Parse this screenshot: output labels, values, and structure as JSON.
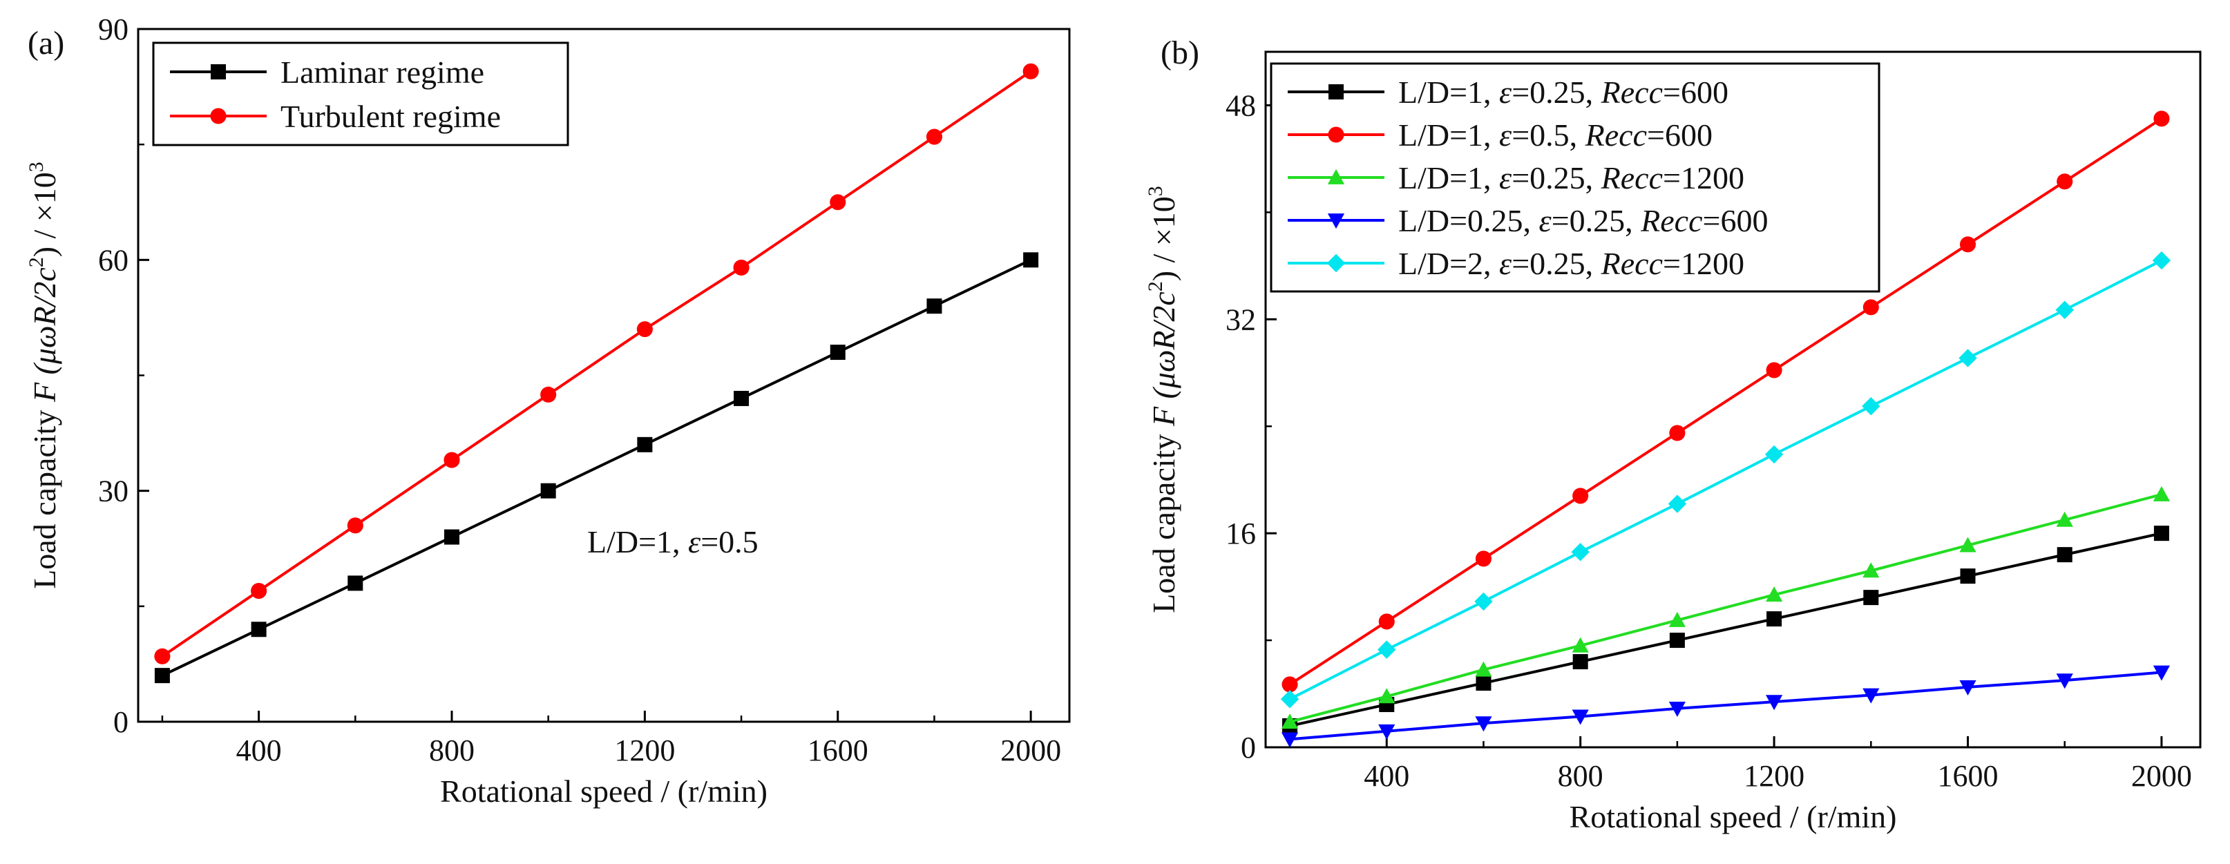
{
  "chart_data": [
    {
      "type": "line",
      "panel_label": "(a)",
      "x": [
        200,
        400,
        600,
        800,
        1000,
        1200,
        1400,
        1600,
        1800,
        2000
      ],
      "xlim": [
        150,
        2080
      ],
      "ylim": [
        0,
        90
      ],
      "xticks": [
        400,
        800,
        1200,
        1600,
        2000
      ],
      "yticks": [
        0,
        30,
        60,
        90
      ],
      "xlabel": "Rotational speed / (r/min)",
      "ylabel": {
        "prefix": "Load capacity ",
        "symbol": "F",
        "formula": "(μωR/2c",
        "formula_exp": "2",
        "close": ")",
        "unit": " / ×10",
        "unit_exp": "3"
      },
      "annotation": {
        "prefix": "L/D=1, ",
        "eps": "ε",
        "suffix": "=0.5"
      },
      "legend_position": "top-left",
      "series": [
        {
          "name": "Laminar regime",
          "color": "#000000",
          "marker": "square",
          "values": [
            6.0,
            12.0,
            18.0,
            24.0,
            30.0,
            36.0,
            42.0,
            48.0,
            54.0,
            60.0
          ]
        },
        {
          "name": "Turbulent regime",
          "color": "#ff0000",
          "marker": "circle",
          "values": [
            8.5,
            17.0,
            25.5,
            34.0,
            42.5,
            51.0,
            59.0,
            67.5,
            76.0,
            84.5
          ]
        }
      ]
    },
    {
      "type": "line",
      "panel_label": "(b)",
      "x": [
        200,
        400,
        600,
        800,
        1000,
        1200,
        1400,
        1600,
        1800,
        2000
      ],
      "xlim": [
        150,
        2080
      ],
      "ylim": [
        0,
        52
      ],
      "xticks": [
        400,
        800,
        1200,
        1600,
        2000
      ],
      "yticks": [
        0,
        16,
        32,
        48
      ],
      "xlabel": "Rotational speed / (r/min)",
      "ylabel": {
        "prefix": "Load capacity ",
        "symbol": "F",
        "formula": "(μωR/2c",
        "formula_exp": "2",
        "close": ")",
        "unit": " / ×10",
        "unit_exp": "3"
      },
      "legend_position": "top-left",
      "series": [
        {
          "name": "L/D=1, ε=0.25, Recc=600",
          "parts": {
            "ld": "L/D=1, ",
            "eps": "ε",
            "eps_val": "=0.25, ",
            "re": "Recc",
            "re_val": "=600"
          },
          "color": "#000000",
          "marker": "square",
          "values": [
            1.6,
            3.2,
            4.8,
            6.4,
            8.0,
            9.6,
            11.2,
            12.8,
            14.4,
            16.0
          ]
        },
        {
          "name": "L/D=1, ε=0.5, Recc=600",
          "parts": {
            "ld": "L/D=1, ",
            "eps": "ε",
            "eps_val": "=0.5, ",
            "re": "Recc",
            "re_val": "=600"
          },
          "color": "#ff0000",
          "marker": "circle",
          "values": [
            4.7,
            9.4,
            14.1,
            18.8,
            23.5,
            28.2,
            32.9,
            37.6,
            42.3,
            47.0
          ]
        },
        {
          "name": "L/D=1, ε=0.25, Recc=1200",
          "parts": {
            "ld": "L/D=1, ",
            "eps": "ε",
            "eps_val": "=0.25, ",
            "re": "Recc",
            "re_val": "=1200"
          },
          "color": "#22dd22",
          "marker": "triangle-up",
          "values": [
            1.9,
            3.8,
            5.8,
            7.6,
            9.5,
            11.4,
            13.2,
            15.1,
            17.0,
            18.9
          ]
        },
        {
          "name": "L/D=0.25, ε=0.25, Recc=600",
          "parts": {
            "ld": "L/D=0.25, ",
            "eps": "ε",
            "eps_val": "=0.25, ",
            "re": "Recc",
            "re_val": "=600"
          },
          "color": "#0000ff",
          "marker": "triangle-down",
          "values": [
            0.6,
            1.2,
            1.8,
            2.3,
            2.9,
            3.4,
            3.9,
            4.5,
            5.0,
            5.6
          ]
        },
        {
          "name": "L/D=2, ε=0.25, Recc=1200",
          "parts": {
            "ld": "L/D=2, ",
            "eps": "ε",
            "eps_val": "=0.25, ",
            "re": "Recc",
            "re_val": "=1200"
          },
          "color": "#00e5ee",
          "marker": "diamond",
          "values": [
            3.6,
            7.3,
            10.9,
            14.6,
            18.2,
            21.9,
            25.5,
            29.1,
            32.7,
            36.4
          ]
        }
      ]
    }
  ]
}
